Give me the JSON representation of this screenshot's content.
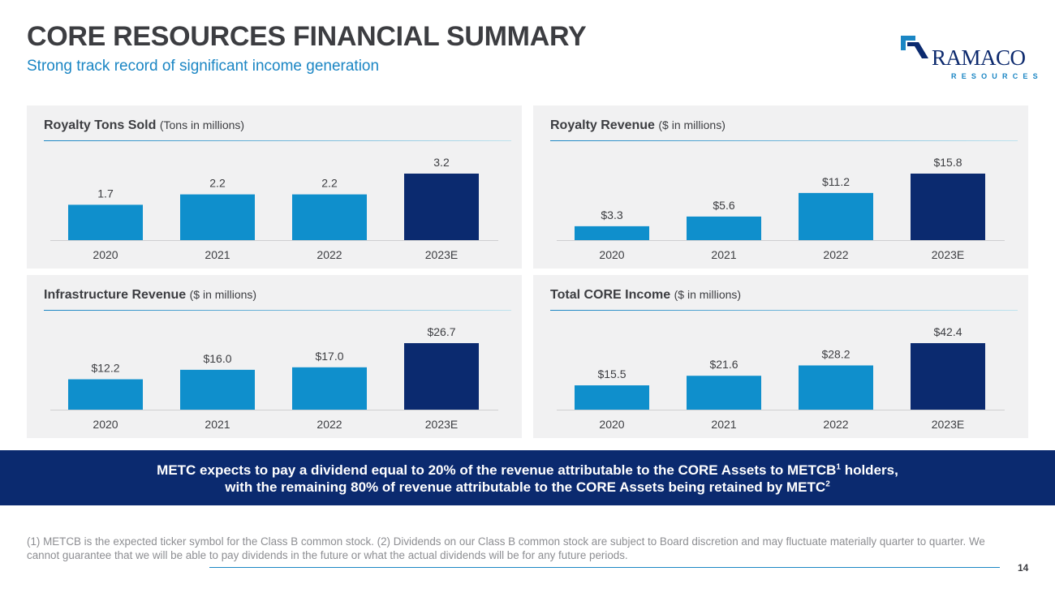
{
  "header": {
    "title": "CORE RESOURCES FINANCIAL SUMMARY",
    "subtitle": "Strong track record of significant income generation"
  },
  "logo": {
    "wordmark": "RAMACO",
    "subtext": "RESOURCES"
  },
  "colors": {
    "bar_light": "#0f8fcc",
    "bar_dark": "#0b2a6f",
    "label": "#3c3d41",
    "accent": "#1b86c4"
  },
  "chart_data": [
    {
      "type": "bar",
      "title": "Royalty Tons Sold",
      "unit": "(Tons in millions)",
      "categories": [
        "2020",
        "2021",
        "2022",
        "2023E"
      ],
      "values": [
        1.7,
        2.2,
        2.2,
        3.2
      ],
      "labels": [
        "1.7",
        "2.2",
        "2.2",
        "3.2"
      ],
      "ylim": [
        0,
        3.2
      ]
    },
    {
      "type": "bar",
      "title": "Royalty Revenue",
      "unit": "($ in millions)",
      "categories": [
        "2020",
        "2021",
        "2022",
        "2023E"
      ],
      "values": [
        3.3,
        5.6,
        11.2,
        15.8
      ],
      "labels": [
        "$3.3",
        "$5.6",
        "$11.2",
        "$15.8"
      ],
      "ylim": [
        0,
        15.8
      ]
    },
    {
      "type": "bar",
      "title": "Infrastructure Revenue",
      "unit": "($ in millions)",
      "categories": [
        "2020",
        "2021",
        "2022",
        "2023E"
      ],
      "values": [
        12.2,
        16.0,
        17.0,
        26.7
      ],
      "labels": [
        "$12.2",
        "$16.0",
        "$17.0",
        "$26.7"
      ],
      "ylim": [
        0,
        26.7
      ]
    },
    {
      "type": "bar",
      "title": "Total CORE Income",
      "unit": "($ in millions)",
      "categories": [
        "2020",
        "2021",
        "2022",
        "2023E"
      ],
      "values": [
        15.5,
        21.6,
        28.2,
        42.4
      ],
      "labels": [
        "$15.5",
        "$21.6",
        "$28.2",
        "$42.4"
      ],
      "ylim": [
        0,
        42.4
      ]
    }
  ],
  "banner": {
    "line1": "METC expects to pay a dividend equal to 20% of the revenue attributable to the CORE Assets to METCB",
    "line1_sup": "1",
    "line1_end": " holders,",
    "line2": "with the remaining 80% of revenue attributable to the CORE Assets being retained by METC",
    "line2_sup": "2"
  },
  "footnote": "(1) METCB is the expected ticker symbol for the Class B common stock. (2) Dividends on our Class B common stock are subject to Board discretion and may fluctuate materially quarter to quarter. We cannot guarantee that we will be able to pay dividends in the future or what the actual dividends will be for any future periods.",
  "page_number": "14"
}
